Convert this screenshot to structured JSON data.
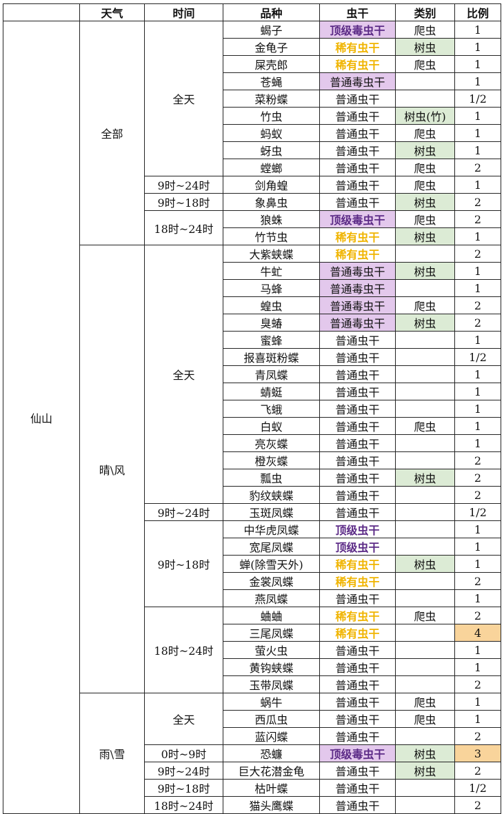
{
  "headers": [
    "",
    "天气",
    "时间",
    "品种",
    "虫干",
    "类别",
    "比例"
  ],
  "region": "仙山",
  "weathers": [
    "全部",
    "晴\\风",
    "雨\\雪"
  ],
  "times": {
    "t0": "全天",
    "t1": "9时~24时",
    "t2": "9时~18时",
    "t3": "18时~24时",
    "t4": "全天",
    "t5": "9时~24时",
    "t6": "9时~18时",
    "t7": "18时~24时",
    "t8": "全天",
    "t9": "0时~9时",
    "t10": "9时~24时",
    "t11": "9时~18时",
    "t12": "18时~24时"
  },
  "rows": [
    {
      "species": "蝎子",
      "grade": "顶级毒虫干",
      "type": "爬虫",
      "ratio": "1"
    },
    {
      "species": "金龟子",
      "grade": "稀有虫干",
      "type": "树虫",
      "ratio": "1"
    },
    {
      "species": "屎壳郎",
      "grade": "稀有虫干",
      "type": "爬虫",
      "ratio": "1"
    },
    {
      "species": "苍蝇",
      "grade": "普通毒虫干",
      "type": "",
      "ratio": "1"
    },
    {
      "species": "菜粉蝶",
      "grade": "普通虫干",
      "type": "",
      "ratio": "1/2"
    },
    {
      "species": "竹虫",
      "grade": "普通虫干",
      "type": "树虫(竹)",
      "ratio": "1"
    },
    {
      "species": "蚂蚁",
      "grade": "普通虫干",
      "type": "爬虫",
      "ratio": "1"
    },
    {
      "species": "蚜虫",
      "grade": "普通虫干",
      "type": "树虫",
      "ratio": "1"
    },
    {
      "species": "螳螂",
      "grade": "普通虫干",
      "type": "爬虫",
      "ratio": "2"
    },
    {
      "species": "剑角蝗",
      "grade": "普通虫干",
      "type": "爬虫",
      "ratio": "1"
    },
    {
      "species": "象鼻虫",
      "grade": "普通虫干",
      "type": "树虫",
      "ratio": "2"
    },
    {
      "species": "狼蛛",
      "grade": "顶级毒虫干",
      "type": "爬虫",
      "ratio": "2"
    },
    {
      "species": "竹节虫",
      "grade": "稀有虫干",
      "type": "树虫",
      "ratio": "1"
    },
    {
      "species": "大紫蛱蝶",
      "grade": "稀有虫干",
      "type": "",
      "ratio": "2"
    },
    {
      "species": "牛虻",
      "grade": "普通毒虫干",
      "type": "树虫",
      "ratio": "1"
    },
    {
      "species": "马蜂",
      "grade": "普通毒虫干",
      "type": "",
      "ratio": "1"
    },
    {
      "species": "蝗虫",
      "grade": "普通毒虫干",
      "type": "爬虫",
      "ratio": "2"
    },
    {
      "species": "臭蝽",
      "grade": "普通毒虫干",
      "type": "树虫",
      "ratio": "2"
    },
    {
      "species": "蜜蜂",
      "grade": "普通虫干",
      "type": "",
      "ratio": "1"
    },
    {
      "species": "报喜斑粉蝶",
      "grade": "普通虫干",
      "type": "",
      "ratio": "1/2"
    },
    {
      "species": "青凤蝶",
      "grade": "普通虫干",
      "type": "",
      "ratio": "1"
    },
    {
      "species": "蜻蜓",
      "grade": "普通虫干",
      "type": "",
      "ratio": "1"
    },
    {
      "species": "飞蛾",
      "grade": "普通虫干",
      "type": "",
      "ratio": "1"
    },
    {
      "species": "白蚁",
      "grade": "普通虫干",
      "type": "爬虫",
      "ratio": "1"
    },
    {
      "species": "亮灰蝶",
      "grade": "普通虫干",
      "type": "",
      "ratio": "1"
    },
    {
      "species": "橙灰蝶",
      "grade": "普通虫干",
      "type": "",
      "ratio": "2"
    },
    {
      "species": "瓢虫",
      "grade": "普通虫干",
      "type": "树虫",
      "ratio": "2"
    },
    {
      "species": "豹纹蛱蝶",
      "grade": "普通虫干",
      "type": "",
      "ratio": "2"
    },
    {
      "species": "玉斑凤蝶",
      "grade": "普通虫干",
      "type": "",
      "ratio": "1/2"
    },
    {
      "species": "中华虎凤蝶",
      "grade": "顶级虫干",
      "type": "",
      "ratio": "1"
    },
    {
      "species": "宽尾凤蝶",
      "grade": "顶级虫干",
      "type": "",
      "ratio": "1"
    },
    {
      "species": "蝉(除雪天外)",
      "grade": "稀有虫干",
      "type": "树虫",
      "ratio": "1"
    },
    {
      "species": "金裳凤蝶",
      "grade": "稀有虫干",
      "type": "",
      "ratio": "2"
    },
    {
      "species": "燕凤蝶",
      "grade": "普通虫干",
      "type": "",
      "ratio": "1"
    },
    {
      "species": "蛐蛐",
      "grade": "稀有虫干",
      "type": "爬虫",
      "ratio": "2"
    },
    {
      "species": "三尾凤蝶",
      "grade": "稀有虫干",
      "type": "",
      "ratio": "4"
    },
    {
      "species": "萤火虫",
      "grade": "普通虫干",
      "type": "",
      "ratio": "1"
    },
    {
      "species": "黄钩蛱蝶",
      "grade": "普通虫干",
      "type": "",
      "ratio": "1"
    },
    {
      "species": "玉带凤蝶",
      "grade": "普通虫干",
      "type": "",
      "ratio": "2"
    },
    {
      "species": "蜗牛",
      "grade": "普通虫干",
      "type": "爬虫",
      "ratio": "1"
    },
    {
      "species": "西瓜虫",
      "grade": "普通虫干",
      "type": "爬虫",
      "ratio": "1"
    },
    {
      "species": "蓝闪蝶",
      "grade": "普通虫干",
      "type": "",
      "ratio": "2"
    },
    {
      "species": "恐蠊",
      "grade": "顶级毒虫干",
      "type": "树虫",
      "ratio": "3"
    },
    {
      "species": "巨大花潜金龟",
      "grade": "普通虫干",
      "type": "树虫",
      "ratio": "2"
    },
    {
      "species": "枯叶蝶",
      "grade": "普通虫干",
      "type": "",
      "ratio": "1/2"
    },
    {
      "species": "猫头鹰蝶",
      "grade": "普通虫干",
      "type": "",
      "ratio": "2"
    }
  ],
  "colors": {
    "top_grade": "#5b2a86",
    "rare_grade": "#f0b400",
    "poison_fill": "#e3c8ec",
    "tree_fill": "#dcebd5",
    "ratio_highlight": "#f9d49b"
  }
}
